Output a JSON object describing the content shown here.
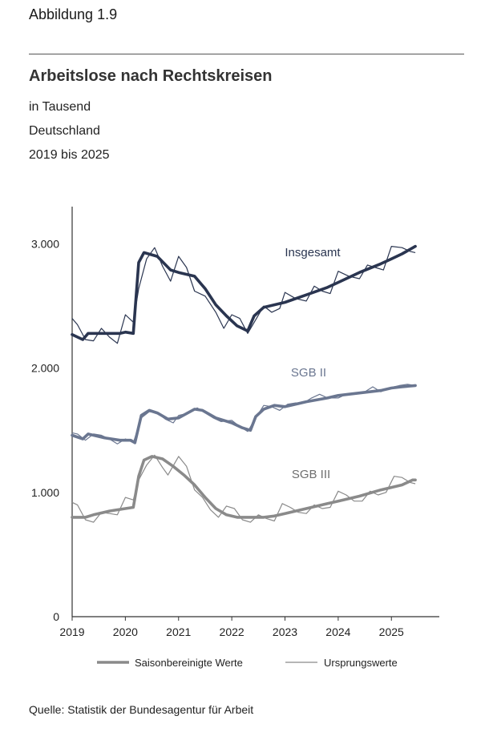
{
  "figure_label": "Abbildung 1.9",
  "source": "Quelle: Statistik der Bundesagentur für Arbeit",
  "chart_data": {
    "type": "line",
    "title": "Arbeitslose nach Rechtskreisen",
    "subtitle": [
      "in Tausend",
      "Deutschland",
      "2019 bis 2025"
    ],
    "xlabel": "",
    "ylabel": "",
    "xlim": [
      2019.0,
      2025.9
    ],
    "ylim": [
      0,
      3300
    ],
    "x_ticks": [
      "2019",
      "2020",
      "2021",
      "2022",
      "2023",
      "2024",
      "2025"
    ],
    "y_ticks": [
      {
        "value": 0,
        "label": "0"
      },
      {
        "value": 1000,
        "label": "1.000"
      },
      {
        "value": 2000,
        "label": "2.000"
      },
      {
        "value": 3000,
        "label": "3.000"
      }
    ],
    "grid": false,
    "legend_position": "bottom",
    "legend": [
      {
        "label": "Saisonbereinigte Werte",
        "style": "thick"
      },
      {
        "label": "Ursprungswerte",
        "style": "thin"
      }
    ],
    "series": [
      {
        "name": "Insgesamt",
        "color": "#2a3550",
        "seasonal_adjusted": [
          [
            2019.0,
            2270
          ],
          [
            2019.2,
            2230
          ],
          [
            2019.3,
            2280
          ],
          [
            2019.6,
            2280
          ],
          [
            2019.9,
            2280
          ],
          [
            2020.0,
            2290
          ],
          [
            2020.15,
            2280
          ],
          [
            2020.25,
            2850
          ],
          [
            2020.35,
            2930
          ],
          [
            2020.6,
            2900
          ],
          [
            2020.85,
            2790
          ],
          [
            2021.0,
            2770
          ],
          [
            2021.3,
            2740
          ],
          [
            2021.5,
            2640
          ],
          [
            2021.7,
            2510
          ],
          [
            2021.9,
            2420
          ],
          [
            2022.1,
            2340
          ],
          [
            2022.3,
            2300
          ],
          [
            2022.42,
            2420
          ],
          [
            2022.6,
            2490
          ],
          [
            2022.8,
            2510
          ],
          [
            2023.0,
            2530
          ],
          [
            2023.4,
            2590
          ],
          [
            2023.8,
            2650
          ],
          [
            2024.0,
            2690
          ],
          [
            2024.4,
            2770
          ],
          [
            2024.8,
            2840
          ],
          [
            2025.0,
            2880
          ],
          [
            2025.2,
            2920
          ],
          [
            2025.45,
            2980
          ]
        ],
        "original": [
          [
            2019.0,
            2400
          ],
          [
            2019.1,
            2350
          ],
          [
            2019.25,
            2230
          ],
          [
            2019.4,
            2220
          ],
          [
            2019.55,
            2320
          ],
          [
            2019.7,
            2250
          ],
          [
            2019.85,
            2200
          ],
          [
            2020.0,
            2430
          ],
          [
            2020.15,
            2370
          ],
          [
            2020.25,
            2640
          ],
          [
            2020.4,
            2880
          ],
          [
            2020.55,
            2970
          ],
          [
            2020.7,
            2820
          ],
          [
            2020.85,
            2700
          ],
          [
            2021.0,
            2900
          ],
          [
            2021.15,
            2810
          ],
          [
            2021.3,
            2620
          ],
          [
            2021.5,
            2580
          ],
          [
            2021.7,
            2450
          ],
          [
            2021.85,
            2320
          ],
          [
            2022.0,
            2430
          ],
          [
            2022.15,
            2400
          ],
          [
            2022.3,
            2280
          ],
          [
            2022.45,
            2390
          ],
          [
            2022.6,
            2500
          ],
          [
            2022.75,
            2450
          ],
          [
            2022.9,
            2480
          ],
          [
            2023.0,
            2610
          ],
          [
            2023.2,
            2560
          ],
          [
            2023.4,
            2540
          ],
          [
            2023.55,
            2660
          ],
          [
            2023.7,
            2620
          ],
          [
            2023.85,
            2600
          ],
          [
            2024.0,
            2780
          ],
          [
            2024.2,
            2740
          ],
          [
            2024.4,
            2720
          ],
          [
            2024.55,
            2830
          ],
          [
            2024.7,
            2810
          ],
          [
            2024.85,
            2790
          ],
          [
            2025.0,
            2980
          ],
          [
            2025.2,
            2970
          ],
          [
            2025.35,
            2940
          ],
          [
            2025.45,
            2930
          ]
        ]
      },
      {
        "name": "SGB II",
        "color": "#6a7690",
        "seasonal_adjusted": [
          [
            2019.0,
            1460
          ],
          [
            2019.2,
            1430
          ],
          [
            2019.3,
            1470
          ],
          [
            2019.6,
            1440
          ],
          [
            2019.9,
            1420
          ],
          [
            2020.1,
            1420
          ],
          [
            2020.18,
            1400
          ],
          [
            2020.3,
            1620
          ],
          [
            2020.45,
            1660
          ],
          [
            2020.6,
            1640
          ],
          [
            2020.8,
            1590
          ],
          [
            2021.0,
            1600
          ],
          [
            2021.3,
            1670
          ],
          [
            2021.45,
            1660
          ],
          [
            2021.7,
            1600
          ],
          [
            2022.0,
            1560
          ],
          [
            2022.2,
            1520
          ],
          [
            2022.35,
            1500
          ],
          [
            2022.45,
            1610
          ],
          [
            2022.6,
            1670
          ],
          [
            2022.8,
            1700
          ],
          [
            2023.0,
            1690
          ],
          [
            2023.4,
            1730
          ],
          [
            2023.8,
            1760
          ],
          [
            2024.0,
            1780
          ],
          [
            2024.4,
            1800
          ],
          [
            2024.8,
            1820
          ],
          [
            2025.0,
            1840
          ],
          [
            2025.2,
            1850
          ],
          [
            2025.45,
            1860
          ]
        ],
        "original": [
          [
            2019.0,
            1480
          ],
          [
            2019.1,
            1470
          ],
          [
            2019.25,
            1420
          ],
          [
            2019.4,
            1470
          ],
          [
            2019.55,
            1460
          ],
          [
            2019.7,
            1430
          ],
          [
            2019.85,
            1390
          ],
          [
            2020.0,
            1430
          ],
          [
            2020.15,
            1400
          ],
          [
            2020.3,
            1600
          ],
          [
            2020.45,
            1650
          ],
          [
            2020.6,
            1640
          ],
          [
            2020.75,
            1590
          ],
          [
            2020.9,
            1560
          ],
          [
            2021.0,
            1620
          ],
          [
            2021.2,
            1640
          ],
          [
            2021.35,
            1680
          ],
          [
            2021.5,
            1640
          ],
          [
            2021.65,
            1600
          ],
          [
            2021.8,
            1570
          ],
          [
            2022.0,
            1580
          ],
          [
            2022.15,
            1530
          ],
          [
            2022.3,
            1490
          ],
          [
            2022.45,
            1600
          ],
          [
            2022.6,
            1700
          ],
          [
            2022.75,
            1690
          ],
          [
            2022.9,
            1660
          ],
          [
            2023.05,
            1710
          ],
          [
            2023.2,
            1720
          ],
          [
            2023.35,
            1720
          ],
          [
            2023.5,
            1760
          ],
          [
            2023.65,
            1790
          ],
          [
            2023.8,
            1760
          ],
          [
            2024.0,
            1760
          ],
          [
            2024.15,
            1790
          ],
          [
            2024.3,
            1800
          ],
          [
            2024.5,
            1810
          ],
          [
            2024.65,
            1850
          ],
          [
            2024.8,
            1810
          ],
          [
            2024.95,
            1840
          ],
          [
            2025.15,
            1860
          ],
          [
            2025.3,
            1870
          ],
          [
            2025.45,
            1860
          ]
        ]
      },
      {
        "name": "SGB III",
        "color": "#8a8a8a",
        "seasonal_adjusted": [
          [
            2019.0,
            800
          ],
          [
            2019.25,
            800
          ],
          [
            2019.4,
            820
          ],
          [
            2019.7,
            850
          ],
          [
            2020.0,
            870
          ],
          [
            2020.15,
            880
          ],
          [
            2020.25,
            1130
          ],
          [
            2020.35,
            1260
          ],
          [
            2020.5,
            1290
          ],
          [
            2020.7,
            1270
          ],
          [
            2020.9,
            1210
          ],
          [
            2021.1,
            1140
          ],
          [
            2021.3,
            1060
          ],
          [
            2021.5,
            960
          ],
          [
            2021.7,
            870
          ],
          [
            2021.9,
            820
          ],
          [
            2022.1,
            800
          ],
          [
            2022.4,
            800
          ],
          [
            2022.6,
            800
          ],
          [
            2022.8,
            810
          ],
          [
            2023.0,
            830
          ],
          [
            2023.4,
            870
          ],
          [
            2023.8,
            910
          ],
          [
            2024.0,
            930
          ],
          [
            2024.4,
            970
          ],
          [
            2024.8,
            1020
          ],
          [
            2025.0,
            1040
          ],
          [
            2025.2,
            1060
          ],
          [
            2025.4,
            1100
          ],
          [
            2025.45,
            1100
          ]
        ],
        "original": [
          [
            2019.0,
            920
          ],
          [
            2019.1,
            900
          ],
          [
            2019.25,
            780
          ],
          [
            2019.4,
            760
          ],
          [
            2019.55,
            840
          ],
          [
            2019.7,
            830
          ],
          [
            2019.85,
            820
          ],
          [
            2020.0,
            960
          ],
          [
            2020.15,
            940
          ],
          [
            2020.25,
            1100
          ],
          [
            2020.4,
            1220
          ],
          [
            2020.55,
            1300
          ],
          [
            2020.7,
            1200
          ],
          [
            2020.8,
            1140
          ],
          [
            2021.0,
            1290
          ],
          [
            2021.15,
            1210
          ],
          [
            2021.3,
            1020
          ],
          [
            2021.45,
            960
          ],
          [
            2021.6,
            860
          ],
          [
            2021.75,
            800
          ],
          [
            2021.9,
            890
          ],
          [
            2022.05,
            870
          ],
          [
            2022.2,
            780
          ],
          [
            2022.35,
            760
          ],
          [
            2022.5,
            820
          ],
          [
            2022.65,
            790
          ],
          [
            2022.8,
            770
          ],
          [
            2022.95,
            910
          ],
          [
            2023.1,
            880
          ],
          [
            2023.25,
            840
          ],
          [
            2023.4,
            830
          ],
          [
            2023.55,
            900
          ],
          [
            2023.7,
            870
          ],
          [
            2023.85,
            880
          ],
          [
            2024.0,
            1010
          ],
          [
            2024.15,
            980
          ],
          [
            2024.3,
            930
          ],
          [
            2024.45,
            930
          ],
          [
            2024.6,
            1010
          ],
          [
            2024.75,
            980
          ],
          [
            2024.9,
            1000
          ],
          [
            2025.05,
            1130
          ],
          [
            2025.2,
            1120
          ],
          [
            2025.35,
            1080
          ],
          [
            2025.45,
            1070
          ]
        ]
      }
    ]
  }
}
